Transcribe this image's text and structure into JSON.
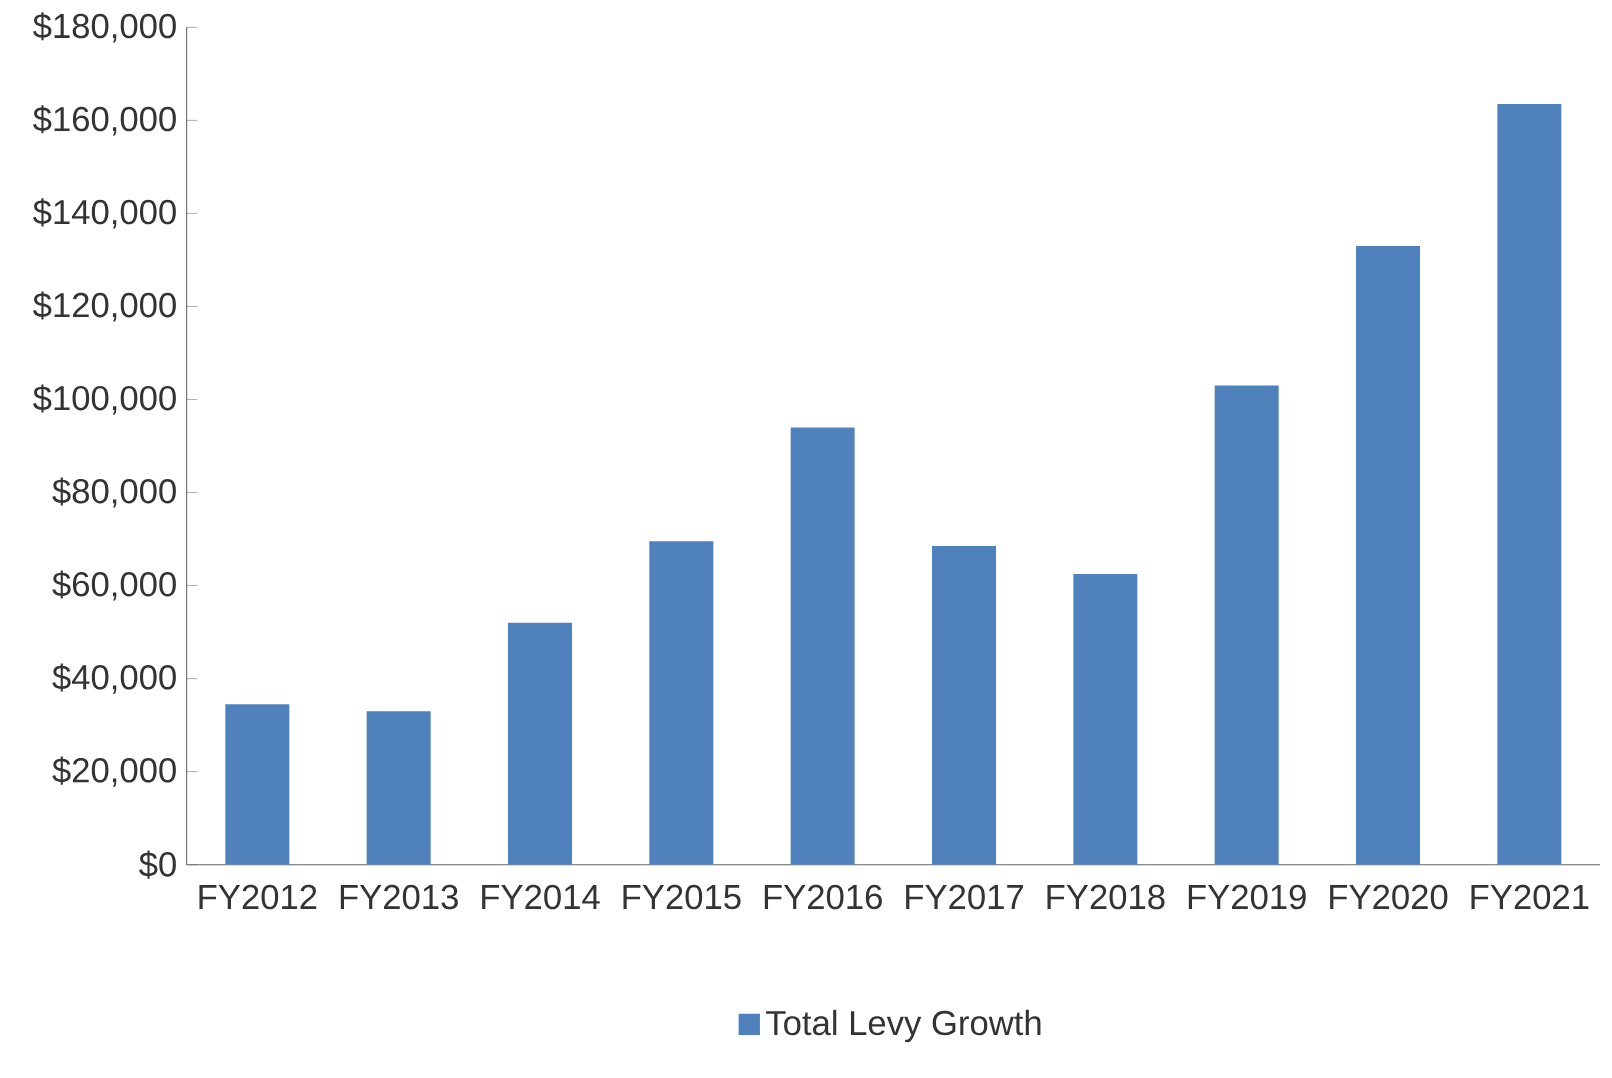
{
  "chart_data": {
    "type": "bar",
    "categories": [
      "FY2012",
      "FY2013",
      "FY2014",
      "FY2015",
      "FY2016",
      "FY2017",
      "FY2018",
      "FY2019",
      "FY2020",
      "FY2021"
    ],
    "series": [
      {
        "name": "Total Levy Growth",
        "color": "#4f81bd",
        "values": [
          34500,
          33000,
          52000,
          69500,
          94000,
          68500,
          62500,
          103000,
          133000,
          163500
        ]
      }
    ],
    "ylim": [
      0,
      180000
    ],
    "yticks": [
      {
        "value": 0,
        "label": "$0"
      },
      {
        "value": 20000,
        "label": "$20,000"
      },
      {
        "value": 40000,
        "label": "$40,000"
      },
      {
        "value": 60000,
        "label": "$60,000"
      },
      {
        "value": 80000,
        "label": "$80,000"
      },
      {
        "value": 100000,
        "label": "$100,000"
      },
      {
        "value": 120000,
        "label": "$120,000"
      },
      {
        "value": 140000,
        "label": "$140,000"
      },
      {
        "value": 160000,
        "label": "$160,000"
      },
      {
        "value": 180000,
        "label": "$180,000"
      }
    ],
    "grid": false,
    "legend": "bottom"
  }
}
